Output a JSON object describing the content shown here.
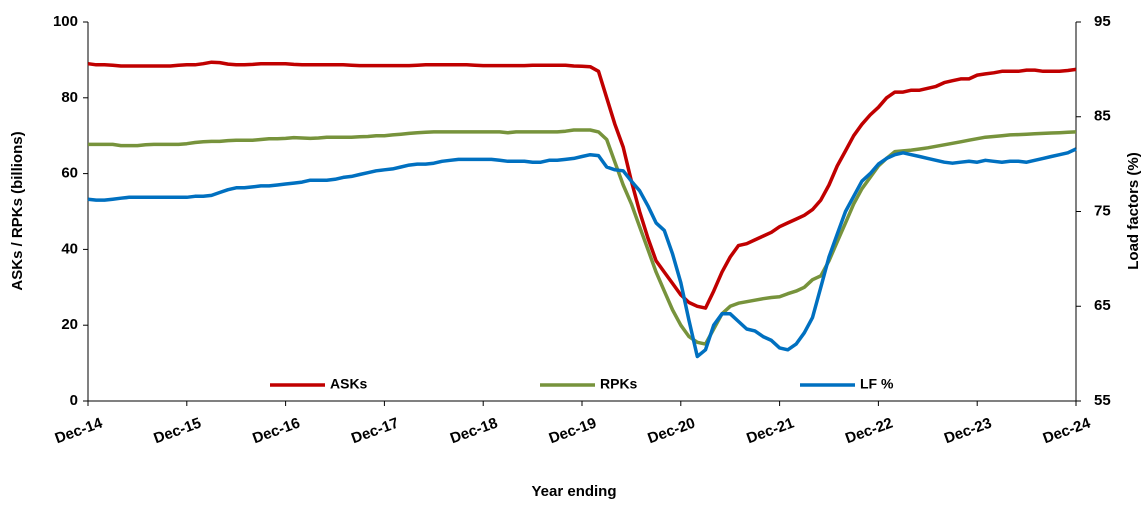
{
  "chart_data": {
    "type": "line",
    "x_label": "Year ending",
    "y_label": "ASKs / RPKs (billions)",
    "y2_label": "Load factors (%)",
    "categories": [
      "Dec-14",
      null,
      null,
      null,
      null,
      null,
      null,
      null,
      null,
      null,
      null,
      null,
      "Dec-15",
      null,
      null,
      null,
      null,
      null,
      null,
      null,
      null,
      null,
      null,
      null,
      "Dec-16",
      null,
      null,
      null,
      null,
      null,
      null,
      null,
      null,
      null,
      null,
      null,
      "Dec-17",
      null,
      null,
      null,
      null,
      null,
      null,
      null,
      null,
      null,
      null,
      null,
      "Dec-18",
      null,
      null,
      null,
      null,
      null,
      null,
      null,
      null,
      null,
      null,
      null,
      "Dec-19",
      null,
      null,
      null,
      null,
      null,
      null,
      null,
      null,
      null,
      null,
      null,
      "Dec-20",
      null,
      null,
      null,
      null,
      null,
      null,
      null,
      null,
      null,
      null,
      null,
      "Dec-21",
      null,
      null,
      null,
      null,
      null,
      null,
      null,
      null,
      null,
      null,
      null,
      "Dec-22",
      null,
      null,
      null,
      null,
      null,
      null,
      null,
      null,
      null,
      null,
      null,
      "Dec-23",
      null,
      null,
      null,
      null,
      null,
      null,
      null,
      null,
      null,
      null,
      null,
      "Dec-24"
    ],
    "ylim": [
      0,
      100
    ],
    "yticks": [
      0,
      20,
      40,
      60,
      80,
      100
    ],
    "y2lim": [
      55,
      95
    ],
    "y2ticks": [
      55,
      65,
      75,
      85,
      95
    ],
    "grid": false,
    "legend": "bottom",
    "series": [
      {
        "name": "ASKs",
        "color": "#c00000",
        "values": [
          89,
          88.7,
          88.7,
          88.6,
          88.4,
          88.4,
          88.4,
          88.4,
          88.4,
          88.4,
          88.4,
          88.6,
          88.7,
          88.7,
          89,
          89.4,
          89.3,
          88.9,
          88.7,
          88.7,
          88.8,
          89,
          89,
          89,
          89,
          88.8,
          88.7,
          88.7,
          88.7,
          88.7,
          88.7,
          88.7,
          88.6,
          88.5,
          88.5,
          88.5,
          88.5,
          88.5,
          88.5,
          88.5,
          88.6,
          88.7,
          88.7,
          88.7,
          88.7,
          88.7,
          88.7,
          88.6,
          88.5,
          88.5,
          88.5,
          88.5,
          88.5,
          88.5,
          88.6,
          88.6,
          88.6,
          88.6,
          88.6,
          88.4,
          88.3,
          88.2,
          87,
          80,
          73,
          67,
          58,
          50,
          43,
          37,
          34,
          31,
          28,
          26,
          25,
          24.5,
          29,
          34,
          38,
          41,
          41.5,
          42.5,
          43.5,
          44.5,
          46,
          47,
          48,
          49,
          50.5,
          53,
          57,
          62,
          66,
          70,
          73,
          75.5,
          77.5,
          80,
          81.5,
          81.5,
          82,
          82,
          82.5,
          83,
          84,
          84.5,
          85,
          85,
          86,
          86.3,
          86.6,
          87,
          87,
          87,
          87.3,
          87.3,
          87,
          87,
          87,
          87.2,
          87.5
        ]
      },
      {
        "name": "RPKs",
        "color": "#77933c",
        "values": [
          67.7,
          67.7,
          67.7,
          67.7,
          67.4,
          67.4,
          67.4,
          67.6,
          67.7,
          67.7,
          67.7,
          67.7,
          67.9,
          68.2,
          68.4,
          68.5,
          68.5,
          68.7,
          68.8,
          68.8,
          68.8,
          69,
          69.2,
          69.2,
          69.3,
          69.5,
          69.4,
          69.3,
          69.4,
          69.6,
          69.6,
          69.6,
          69.6,
          69.7,
          69.8,
          70,
          70,
          70.2,
          70.4,
          70.6,
          70.8,
          70.9,
          71,
          71,
          71,
          71,
          71,
          71,
          71,
          71,
          71,
          70.8,
          71,
          71,
          71,
          71,
          71,
          71,
          71.2,
          71.5,
          71.5,
          71.5,
          71,
          69,
          63,
          57,
          52,
          46,
          40,
          34,
          29,
          24,
          20,
          17,
          15.5,
          15,
          19,
          23,
          25,
          25.8,
          26.2,
          26.6,
          27,
          27.3,
          27.5,
          28.3,
          29,
          30,
          32,
          33,
          37,
          42,
          47,
          52,
          56,
          59,
          62,
          64,
          65.8,
          66,
          66.2,
          66.5,
          66.8,
          67.2,
          67.6,
          68,
          68.4,
          68.8,
          69.2,
          69.6,
          69.8,
          70,
          70.2,
          70.3,
          70.4,
          70.5,
          70.6,
          70.7,
          70.8,
          70.9,
          71
        ]
      },
      {
        "name": "LF %",
        "color": "#0070c0",
        "axis": "y2",
        "values": [
          76.3,
          76.2,
          76.2,
          76.3,
          76.4,
          76.5,
          76.5,
          76.5,
          76.5,
          76.5,
          76.5,
          76.5,
          76.5,
          76.6,
          76.6,
          76.7,
          77,
          77.3,
          77.5,
          77.5,
          77.6,
          77.7,
          77.7,
          77.8,
          77.9,
          78,
          78.1,
          78.3,
          78.3,
          78.3,
          78.4,
          78.6,
          78.7,
          78.9,
          79.1,
          79.3,
          79.4,
          79.5,
          79.7,
          79.9,
          80,
          80,
          80.1,
          80.3,
          80.4,
          80.5,
          80.5,
          80.5,
          80.5,
          80.5,
          80.4,
          80.3,
          80.3,
          80.3,
          80.2,
          80.2,
          80.4,
          80.4,
          80.5,
          80.6,
          80.8,
          81,
          80.9,
          79.7,
          79.4,
          79.3,
          78.2,
          77.2,
          75.6,
          73.8,
          73,
          70.5,
          67.5,
          63.5,
          59.7,
          60.4,
          63,
          64.2,
          64.2,
          63.4,
          62.6,
          62.4,
          61.8,
          61.4,
          60.6,
          60.4,
          61,
          62.2,
          63.8,
          67,
          70.2,
          72.6,
          75,
          76.6,
          78.2,
          79,
          80,
          80.6,
          81,
          81.2,
          81,
          80.8,
          80.6,
          80.4,
          80.2,
          80.1,
          80.2,
          80.3,
          80.2,
          80.4,
          80.3,
          80.2,
          80.3,
          80.3,
          80.2,
          80.4,
          80.6,
          80.8,
          81,
          81.2,
          81.6
        ]
      }
    ]
  }
}
